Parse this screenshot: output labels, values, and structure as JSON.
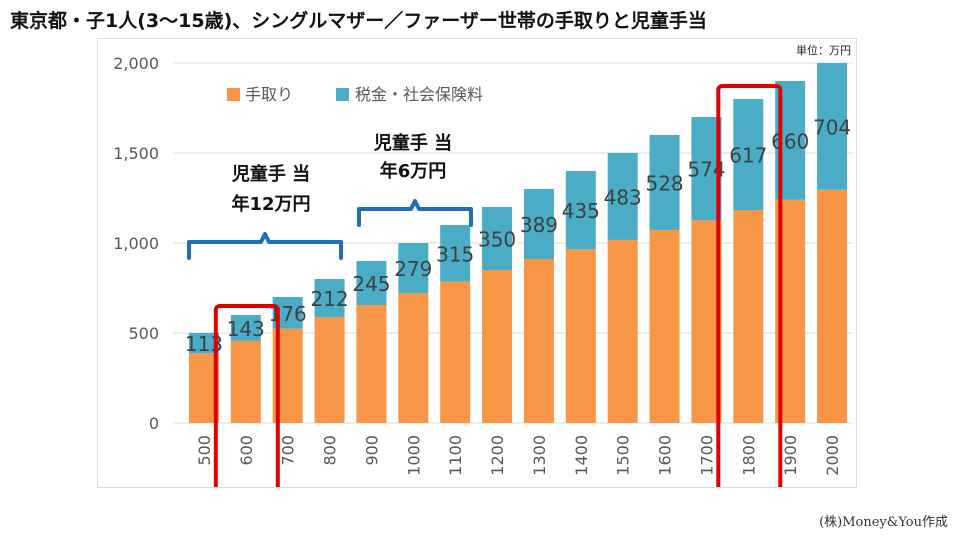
{
  "title": "東京都・子1人(3〜15歳)、シングルマザー／ファーザー世帯の手取りと児童手当",
  "credit": "(株)Money&You作成",
  "chart_data": {
    "type": "bar",
    "stacked": true,
    "unit": "単位：万円",
    "categories": [
      "500",
      "600",
      "700",
      "800",
      "900",
      "1000",
      "1100",
      "1200",
      "1300",
      "1400",
      "1500",
      "1600",
      "1700",
      "1800",
      "1900",
      "2000"
    ],
    "series": [
      {
        "name": "手取り",
        "color": "#f79646",
        "values": [
          387,
          457,
          524,
          588,
          655,
          721,
          785,
          850,
          911,
          965,
          1017,
          1072,
          1126,
          1183,
          1240,
          1296
        ]
      },
      {
        "name": "税金・社会保険料",
        "color": "#4bacc6",
        "values": [
          113,
          143,
          176,
          212,
          245,
          279,
          315,
          350,
          389,
          435,
          483,
          528,
          574,
          617,
          660,
          704
        ]
      }
    ],
    "data_labels": [
      "113",
      "143",
      "176",
      "212",
      "245",
      "279",
      "315",
      "350",
      "389",
      "435",
      "483",
      "528",
      "574",
      "617",
      "660",
      "704"
    ],
    "ylim": [
      0,
      2000
    ],
    "yticks": [
      0,
      500,
      1000,
      1500,
      2000
    ],
    "ytick_labels": [
      "0",
      "500",
      "1,000",
      "1,500",
      "2,000"
    ],
    "legend_position": "top-left",
    "annotations": [
      {
        "line1": "児童手 当",
        "line2": "年12万円",
        "from": "500",
        "to": "800"
      },
      {
        "line1": "児童手 当",
        "line2": "年6万円",
        "from": "900",
        "to": "1100"
      }
    ],
    "highlights": [
      "600",
      "1800"
    ],
    "annotation_color": "#1f6fb4",
    "highlight_color": "#e00000"
  }
}
